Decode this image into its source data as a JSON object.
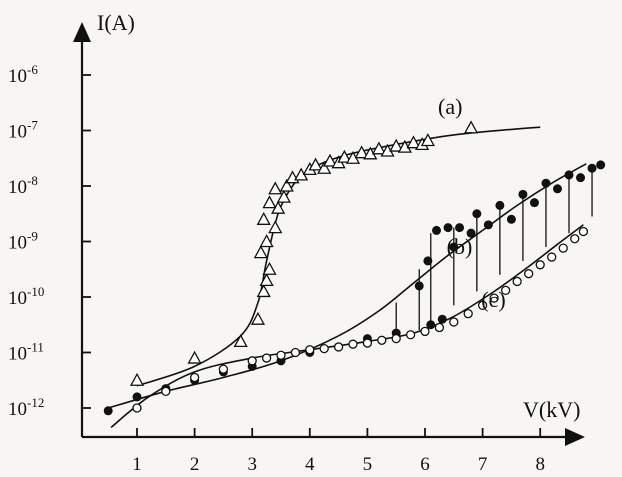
{
  "chart_data": {
    "type": "scatter",
    "xlabel": "V(kV)",
    "ylabel": "I(A)",
    "x_ticks": [
      "1",
      "2",
      "3",
      "4",
      "5",
      "6",
      "7",
      "8"
    ],
    "y_ticks": [
      {
        "exp": -6,
        "label": "10",
        "sup": "-6"
      },
      {
        "exp": -7,
        "label": "10",
        "sup": "-7"
      },
      {
        "exp": -8,
        "label": "10",
        "sup": "-8"
      },
      {
        "exp": -9,
        "label": "10",
        "sup": "-9"
      },
      {
        "exp": -10,
        "label": "10",
        "sup": "-10"
      },
      {
        "exp": -11,
        "label": "10",
        "sup": "-11"
      },
      {
        "exp": -12,
        "label": "10",
        "sup": "-12"
      }
    ],
    "y_scale": "log",
    "xlim": [
      0.1,
      9.1
    ],
    "ylim_exp": [
      -12.4,
      -5.35
    ],
    "grid": false,
    "legend": "none",
    "series": [
      {
        "name": "(a)",
        "marker": "triangle-open",
        "fit_curve": [
          [
            1.0,
            -11.6
          ],
          [
            2.0,
            -11.25
          ],
          [
            2.8,
            -10.7
          ],
          [
            3.1,
            -10.1
          ],
          [
            3.25,
            -9.35
          ],
          [
            3.45,
            -8.5
          ],
          [
            3.7,
            -8.0
          ],
          [
            4.0,
            -7.7
          ],
          [
            4.6,
            -7.45
          ],
          [
            5.5,
            -7.25
          ],
          [
            6.5,
            -7.08
          ],
          [
            7.5,
            -6.98
          ],
          [
            8.0,
            -6.94
          ]
        ],
        "points": [
          [
            1.0,
            -11.5
          ],
          [
            2.0,
            -11.1
          ],
          [
            2.8,
            -10.8
          ],
          [
            3.1,
            -10.4
          ],
          [
            3.2,
            -9.9
          ],
          [
            3.25,
            -9.7
          ],
          [
            3.3,
            -9.5
          ],
          [
            3.15,
            -9.2
          ],
          [
            3.25,
            -9.0
          ],
          [
            3.4,
            -8.75
          ],
          [
            3.2,
            -8.6
          ],
          [
            3.45,
            -8.4
          ],
          [
            3.3,
            -8.3
          ],
          [
            3.55,
            -8.2
          ],
          [
            3.4,
            -8.05
          ],
          [
            3.6,
            -8.0
          ],
          [
            3.7,
            -7.85
          ],
          [
            3.85,
            -7.8
          ],
          [
            4.0,
            -7.7
          ],
          [
            4.1,
            -7.62
          ],
          [
            4.25,
            -7.68
          ],
          [
            4.35,
            -7.55
          ],
          [
            4.5,
            -7.58
          ],
          [
            4.6,
            -7.48
          ],
          [
            4.75,
            -7.5
          ],
          [
            4.9,
            -7.4
          ],
          [
            5.05,
            -7.42
          ],
          [
            5.2,
            -7.33
          ],
          [
            5.35,
            -7.37
          ],
          [
            5.5,
            -7.28
          ],
          [
            5.65,
            -7.3
          ],
          [
            5.8,
            -7.22
          ],
          [
            5.95,
            -7.25
          ],
          [
            6.05,
            -7.18
          ],
          [
            6.8,
            -6.95
          ]
        ]
      },
      {
        "name": "(b)",
        "marker": "circle-filled",
        "fit_curve": [
          [
            0.5,
            -12.0
          ],
          [
            1.5,
            -11.7
          ],
          [
            2.5,
            -11.45
          ],
          [
            3.5,
            -11.15
          ],
          [
            4.5,
            -10.7
          ],
          [
            5.2,
            -10.25
          ],
          [
            5.8,
            -9.75
          ],
          [
            6.4,
            -9.25
          ],
          [
            7.0,
            -8.8
          ],
          [
            7.6,
            -8.35
          ],
          [
            8.2,
            -7.95
          ],
          [
            8.8,
            -7.6
          ]
        ],
        "points": [
          [
            0.5,
            -12.05
          ],
          [
            1.0,
            -11.8
          ],
          [
            1.5,
            -11.65
          ],
          [
            2.0,
            -11.5
          ],
          [
            2.5,
            -11.35
          ],
          [
            3.0,
            -11.25
          ],
          [
            3.5,
            -11.15
          ],
          [
            4.0,
            -11.0
          ],
          [
            4.5,
            -10.9
          ],
          [
            5.0,
            -10.75
          ],
          [
            5.5,
            -10.65
          ],
          [
            5.9,
            -9.8
          ],
          [
            6.05,
            -9.35
          ],
          [
            6.1,
            -10.5
          ],
          [
            6.2,
            -8.8
          ],
          [
            6.3,
            -10.4
          ],
          [
            6.4,
            -8.75
          ],
          [
            6.5,
            -9.1
          ],
          [
            6.6,
            -8.75
          ],
          [
            6.8,
            -8.85
          ],
          [
            6.9,
            -8.5
          ],
          [
            7.1,
            -8.7
          ],
          [
            7.3,
            -8.35
          ],
          [
            7.5,
            -8.6
          ],
          [
            7.7,
            -8.15
          ],
          [
            7.9,
            -8.3
          ],
          [
            8.1,
            -7.95
          ],
          [
            8.3,
            -8.05
          ],
          [
            8.5,
            -7.8
          ],
          [
            8.7,
            -7.85
          ],
          [
            8.9,
            -7.68
          ],
          [
            9.05,
            -7.62
          ]
        ]
      },
      {
        "name": "(c)",
        "marker": "circle-open",
        "fit_curve": [
          [
            0.55,
            -12.35
          ],
          [
            1.2,
            -11.8
          ],
          [
            2.0,
            -11.35
          ],
          [
            3.0,
            -11.1
          ],
          [
            4.0,
            -10.95
          ],
          [
            5.0,
            -10.8
          ],
          [
            5.8,
            -10.65
          ],
          [
            6.5,
            -10.35
          ],
          [
            7.2,
            -9.9
          ],
          [
            7.8,
            -9.45
          ],
          [
            8.3,
            -9.05
          ],
          [
            8.75,
            -8.7
          ]
        ],
        "points": [
          [
            1.0,
            -12.0
          ],
          [
            1.5,
            -11.7
          ],
          [
            2.0,
            -11.45
          ],
          [
            2.5,
            -11.3
          ],
          [
            3.0,
            -11.15
          ],
          [
            3.25,
            -11.1
          ],
          [
            3.5,
            -11.05
          ],
          [
            3.75,
            -11.0
          ],
          [
            4.0,
            -10.95
          ],
          [
            4.25,
            -10.93
          ],
          [
            4.5,
            -10.9
          ],
          [
            4.75,
            -10.85
          ],
          [
            5.0,
            -10.83
          ],
          [
            5.25,
            -10.78
          ],
          [
            5.5,
            -10.75
          ],
          [
            5.75,
            -10.68
          ],
          [
            6.0,
            -10.62
          ],
          [
            6.25,
            -10.55
          ],
          [
            6.5,
            -10.45
          ],
          [
            6.75,
            -10.3
          ],
          [
            7.0,
            -10.15
          ],
          [
            7.2,
            -10.02
          ],
          [
            7.4,
            -9.88
          ],
          [
            7.6,
            -9.72
          ],
          [
            7.8,
            -9.58
          ],
          [
            8.0,
            -9.42
          ],
          [
            8.2,
            -9.28
          ],
          [
            8.4,
            -9.12
          ],
          [
            8.6,
            -8.95
          ],
          [
            8.75,
            -8.82
          ]
        ]
      }
    ],
    "jump_lines": [
      [
        5.5,
        -10.65,
        -10.1
      ],
      [
        5.9,
        -10.6,
        -9.5
      ],
      [
        6.1,
        -10.55,
        -8.85
      ],
      [
        6.5,
        -10.15,
        -8.75
      ],
      [
        6.9,
        -9.9,
        -8.5
      ],
      [
        7.3,
        -9.6,
        -8.3
      ],
      [
        7.7,
        -9.35,
        -8.1
      ],
      [
        8.1,
        -9.1,
        -7.95
      ],
      [
        8.5,
        -8.85,
        -7.8
      ],
      [
        8.9,
        -8.55,
        -7.65
      ]
    ],
    "series_label_pos": {
      "(a)": [
        6.4,
        -6.58
      ],
      "(b)": [
        6.55,
        -9.1
      ],
      "(c)": [
        7.15,
        -10.05
      ]
    }
  }
}
